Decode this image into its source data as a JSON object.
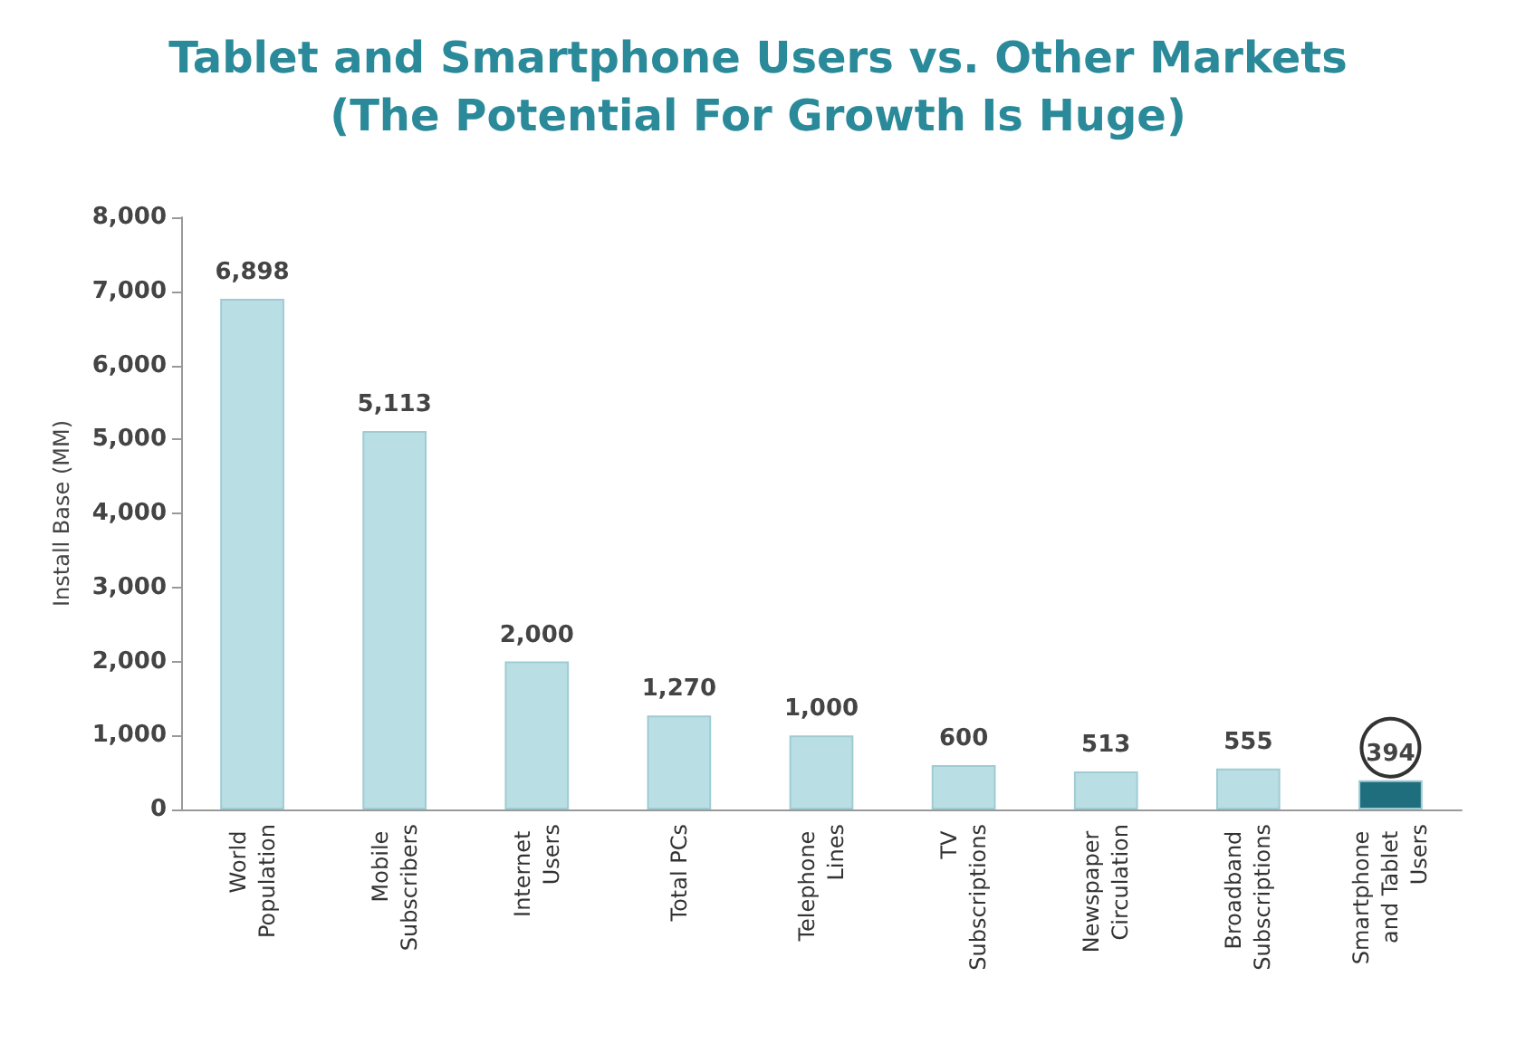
{
  "chart_data": {
    "type": "bar",
    "title": "Tablet and Smartphone Users vs. Other Markets",
    "subtitle": "(The Potential For Growth Is Huge)",
    "ylabel": "Install Base (MM)",
    "categories": [
      "World Population",
      "Mobile Subscribers",
      "Internet Users",
      "Total PCs",
      "Telephone Lines",
      "TV Subscriptions",
      "Newspaper Circulation",
      "Broadband Subscriptions",
      "Smartphone and Tablet Users"
    ],
    "values": [
      6898,
      5113,
      2000,
      1270,
      1000,
      600,
      513,
      555,
      394
    ],
    "value_labels": [
      "6,898",
      "5,113",
      "2,000",
      "1,270",
      "1,000",
      "600",
      "513",
      "555",
      "394"
    ],
    "colors": [
      "#b9dfe5",
      "#b9dfe5",
      "#b9dfe5",
      "#b9dfe5",
      "#b9dfe5",
      "#b9dfe5",
      "#b9dfe5",
      "#b9dfe5",
      "#1f6e7e"
    ],
    "ylim": [
      0,
      8000
    ],
    "yticks": [
      {
        "value": 0,
        "label": "0"
      },
      {
        "value": 1000,
        "label": "1,000"
      },
      {
        "value": 2000,
        "label": "2,000"
      },
      {
        "value": 3000,
        "label": "3,000"
      },
      {
        "value": 4000,
        "label": "4,000"
      },
      {
        "value": 5000,
        "label": "5,000"
      },
      {
        "value": 6000,
        "label": "6,000"
      },
      {
        "value": 7000,
        "label": "7,000"
      },
      {
        "value": 8000,
        "label": "8,000"
      }
    ],
    "grid": false
  }
}
